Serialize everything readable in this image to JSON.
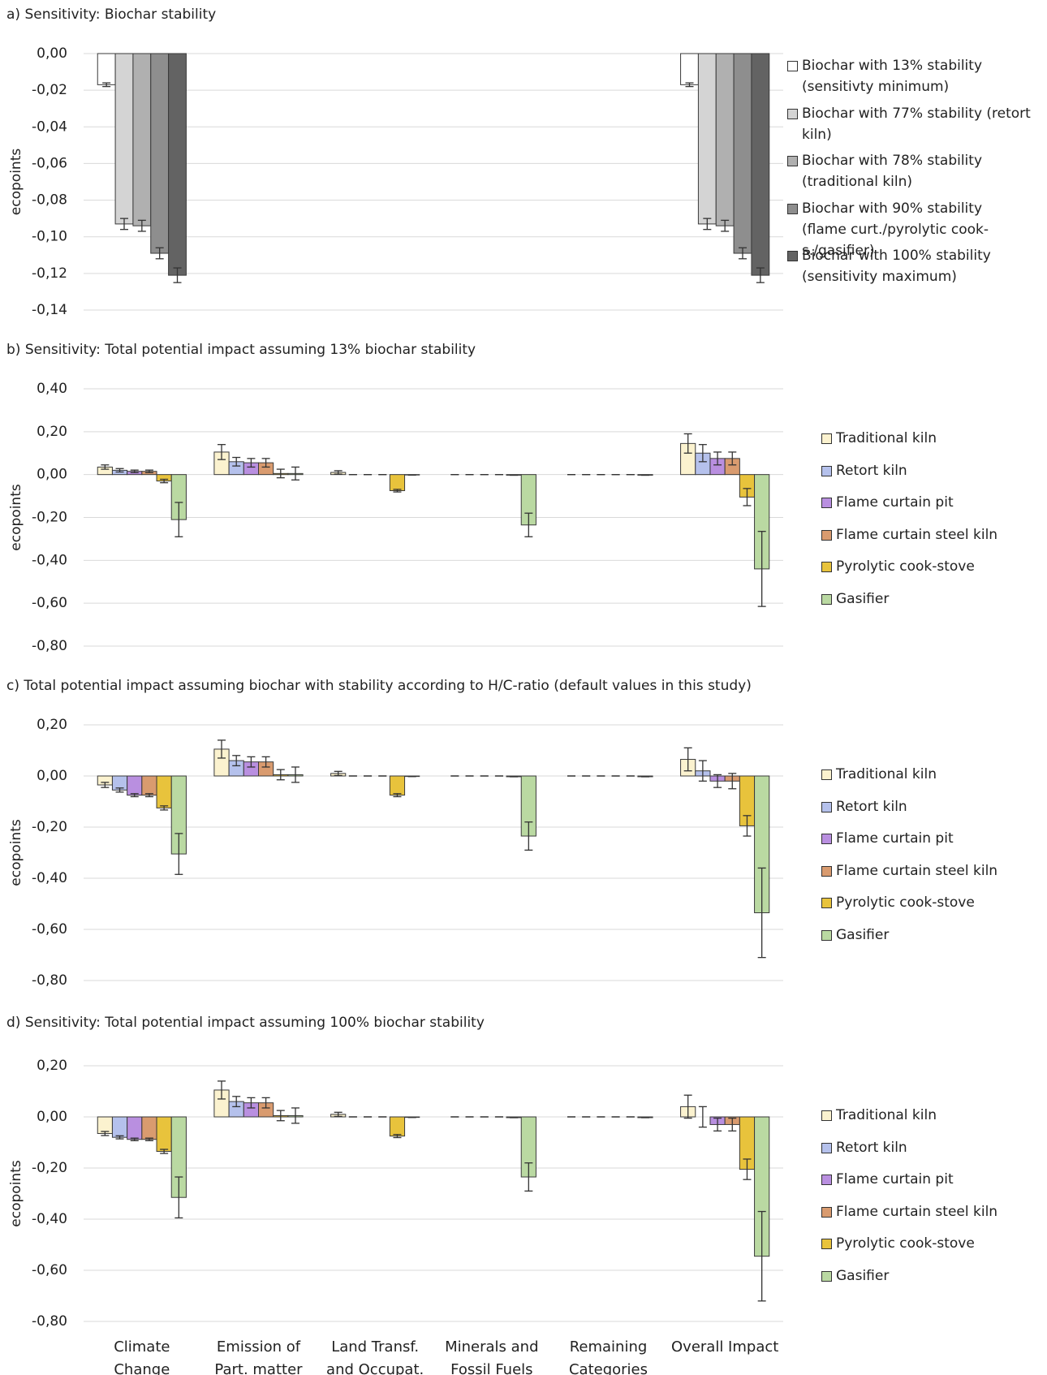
{
  "chart_data": [
    {
      "type": "bar",
      "title": "a) Sensitivity: Biochar stability",
      "y_label": "ecopoints",
      "categories": [
        null,
        null,
        null,
        null,
        null,
        null
      ],
      "ylim": [
        -0.14,
        0
      ],
      "yticks": [
        {
          "value": 0,
          "label": "0,00"
        },
        {
          "value": -0.02,
          "label": "-0,02"
        },
        {
          "value": -0.04,
          "label": "-0,04"
        },
        {
          "value": -0.06,
          "label": "-0,06"
        },
        {
          "value": -0.08,
          "label": "-0,08"
        },
        {
          "value": -0.1,
          "label": "-0,10"
        },
        {
          "value": -0.12,
          "label": "-0,12"
        },
        {
          "value": -0.14,
          "label": "-0,14"
        }
      ],
      "grid": true,
      "series": [
        {
          "name": "Biochar with 13% stability (sensitivty minimum)",
          "color": "#ffffff",
          "values": [
            -0.017,
            null,
            null,
            null,
            null,
            -0.017
          ],
          "errors": [
            0.001,
            null,
            null,
            null,
            null,
            0.001
          ]
        },
        {
          "name": "Biochar with 77% stability (retort kiln)",
          "color": "#d4d4d4",
          "values": [
            -0.093,
            null,
            null,
            null,
            null,
            -0.093
          ],
          "errors": [
            0.003,
            null,
            null,
            null,
            null,
            0.003
          ]
        },
        {
          "name": "Biochar with 78% stability (traditional kiln)",
          "color": "#b0b0b0",
          "values": [
            -0.094,
            null,
            null,
            null,
            null,
            -0.094
          ],
          "errors": [
            0.003,
            null,
            null,
            null,
            null,
            0.003
          ]
        },
        {
          "name": "Biochar with 90% stability (flame curt./pyrolytic cook-s./gasifier)",
          "color": "#8e8e8e",
          "values": [
            -0.109,
            null,
            null,
            null,
            null,
            -0.109
          ],
          "errors": [
            0.003,
            null,
            null,
            null,
            null,
            0.003
          ]
        },
        {
          "name": "Biochar with 100% stability (sensitivity maximum)",
          "color": "#636363",
          "values": [
            -0.121,
            null,
            null,
            null,
            null,
            -0.121
          ],
          "errors": [
            0.004,
            null,
            null,
            null,
            null,
            0.004
          ]
        }
      ]
    },
    {
      "type": "bar",
      "title": "b) Sensitivity: Total potential impact assuming 13% biochar stability",
      "y_label": "ecopoints",
      "categories": [
        null,
        null,
        null,
        null,
        null,
        null
      ],
      "ylim": [
        -0.8,
        0.4
      ],
      "yticks": [
        {
          "value": 0.4,
          "label": "0,40"
        },
        {
          "value": 0.2,
          "label": "0,20"
        },
        {
          "value": 0,
          "label": "0,00"
        },
        {
          "value": -0.2,
          "label": "-0,20"
        },
        {
          "value": -0.4,
          "label": "-0,40"
        },
        {
          "value": -0.6,
          "label": "-0,60"
        },
        {
          "value": -0.8,
          "label": "-0,80"
        }
      ],
      "grid": true,
      "series": [
        {
          "name": "Traditional kiln",
          "color": "#fbf2cf",
          "values": [
            0.035,
            0.105,
            0.01,
            0,
            0,
            0.145
          ],
          "errors": [
            0.01,
            0.035,
            0.008,
            0,
            0,
            0.045
          ]
        },
        {
          "name": "Retort kiln",
          "color": "#b5c1ec",
          "values": [
            0.02,
            0.06,
            0,
            0,
            0,
            0.1
          ],
          "errors": [
            0.008,
            0.02,
            0,
            0,
            0,
            0.04
          ]
        },
        {
          "name": "Flame curtain pit",
          "color": "#b98fe0",
          "values": [
            0.015,
            0.055,
            0,
            0,
            0,
            0.075
          ],
          "errors": [
            0.006,
            0.02,
            0,
            0,
            0,
            0.03
          ]
        },
        {
          "name": "Flame curtain steel kiln",
          "color": "#d99b6f",
          "values": [
            0.015,
            0.055,
            0,
            0,
            0,
            0.075
          ],
          "errors": [
            0.006,
            0.02,
            0,
            0,
            0,
            0.03
          ]
        },
        {
          "name": "Pyrolytic cook-stove",
          "color": "#e8c33c",
          "values": [
            -0.03,
            0.005,
            -0.075,
            -0.003,
            0,
            -0.105
          ],
          "errors": [
            0.008,
            0.02,
            0.006,
            0,
            0,
            0.04
          ]
        },
        {
          "name": "Gasifier",
          "color": "#bad9a2",
          "values": [
            -0.21,
            0.005,
            -0.002,
            -0.235,
            -0.003,
            -0.44
          ],
          "errors": [
            0.08,
            0.03,
            0,
            0.055,
            0,
            0.175
          ]
        }
      ]
    },
    {
      "type": "bar",
      "title": "c) Total potential impact assuming biochar with stability according to H/C-ratio (default values in this study)",
      "y_label": "ecopoints",
      "categories": [
        null,
        null,
        null,
        null,
        null,
        null
      ],
      "ylim": [
        -0.8,
        0.2
      ],
      "yticks": [
        {
          "value": 0.2,
          "label": "0,20"
        },
        {
          "value": 0,
          "label": "0,00"
        },
        {
          "value": -0.2,
          "label": "-0,20"
        },
        {
          "value": -0.4,
          "label": "-0,40"
        },
        {
          "value": -0.6,
          "label": "-0,60"
        },
        {
          "value": -0.8,
          "label": "-0,80"
        }
      ],
      "grid": true,
      "series": [
        {
          "name": "Traditional kiln",
          "color": "#fbf2cf",
          "values": [
            -0.035,
            0.105,
            0.01,
            0,
            0,
            0.065
          ],
          "errors": [
            0.01,
            0.035,
            0.008,
            0,
            0,
            0.045
          ]
        },
        {
          "name": "Retort kiln",
          "color": "#b5c1ec",
          "values": [
            -0.055,
            0.06,
            0,
            0,
            0,
            0.02
          ],
          "errors": [
            0.008,
            0.02,
            0,
            0,
            0,
            0.04
          ]
        },
        {
          "name": "Flame curtain pit",
          "color": "#b98fe0",
          "values": [
            -0.075,
            0.055,
            0,
            0,
            0,
            -0.02
          ],
          "errors": [
            0.006,
            0.02,
            0,
            0,
            0,
            0.025
          ]
        },
        {
          "name": "Flame curtain steel kiln",
          "color": "#d99b6f",
          "values": [
            -0.075,
            0.055,
            0,
            0,
            0,
            -0.02
          ],
          "errors": [
            0.006,
            0.02,
            0,
            0,
            0,
            0.03
          ]
        },
        {
          "name": "Pyrolytic cook-stove",
          "color": "#e8c33c",
          "values": [
            -0.125,
            0.005,
            -0.075,
            -0.003,
            0,
            -0.195
          ],
          "errors": [
            0.008,
            0.02,
            0.006,
            0,
            0,
            0.04
          ]
        },
        {
          "name": "Gasifier",
          "color": "#bad9a2",
          "values": [
            -0.305,
            0.005,
            -0.002,
            -0.235,
            -0.003,
            -0.535
          ],
          "errors": [
            0.08,
            0.03,
            0,
            0.055,
            0,
            0.175
          ]
        }
      ]
    },
    {
      "type": "bar",
      "title": "d) Sensitivity: Total potential impact assuming 100% biochar stability",
      "y_label": "ecopoints",
      "categories": [
        "Climate Change",
        "Emission of Part. matter",
        "Land Transf. and Occupat.",
        "Minerals and Fossil Fuels",
        "Remaining Categories",
        "Overall Impact"
      ],
      "ylim": [
        -0.8,
        0.2
      ],
      "yticks": [
        {
          "value": 0.2,
          "label": "0,20"
        },
        {
          "value": 0,
          "label": "0,00"
        },
        {
          "value": -0.2,
          "label": "-0,20"
        },
        {
          "value": -0.4,
          "label": "-0,40"
        },
        {
          "value": -0.6,
          "label": "-0,60"
        },
        {
          "value": -0.8,
          "label": "-0,80"
        }
      ],
      "grid": true,
      "series": [
        {
          "name": "Traditional kiln",
          "color": "#fbf2cf",
          "values": [
            -0.065,
            0.105,
            0.01,
            0,
            0,
            0.04
          ],
          "errors": [
            0.008,
            0.035,
            0.008,
            0,
            0,
            0.045
          ]
        },
        {
          "name": "Retort kiln",
          "color": "#b5c1ec",
          "values": [
            -0.08,
            0.06,
            0,
            0,
            0,
            0
          ],
          "errors": [
            0.006,
            0.02,
            0,
            0,
            0,
            0.04
          ]
        },
        {
          "name": "Flame curtain pit",
          "color": "#b98fe0",
          "values": [
            -0.088,
            0.055,
            0,
            0,
            0,
            -0.03
          ],
          "errors": [
            0.005,
            0.02,
            0,
            0,
            0,
            0.025
          ]
        },
        {
          "name": "Flame curtain steel kiln",
          "color": "#d99b6f",
          "values": [
            -0.088,
            0.055,
            0,
            0,
            0,
            -0.03
          ],
          "errors": [
            0.005,
            0.02,
            0,
            0,
            0,
            0.025
          ]
        },
        {
          "name": "Pyrolytic cook-stove",
          "color": "#e8c33c",
          "values": [
            -0.135,
            0.005,
            -0.075,
            -0.003,
            0,
            -0.205
          ],
          "errors": [
            0.008,
            0.02,
            0.006,
            0,
            0,
            0.04
          ]
        },
        {
          "name": "Gasifier",
          "color": "#bad9a2",
          "values": [
            -0.315,
            0.005,
            -0.002,
            -0.235,
            -0.003,
            -0.545
          ],
          "errors": [
            0.08,
            0.03,
            0,
            0.055,
            0,
            0.175
          ]
        }
      ]
    }
  ]
}
